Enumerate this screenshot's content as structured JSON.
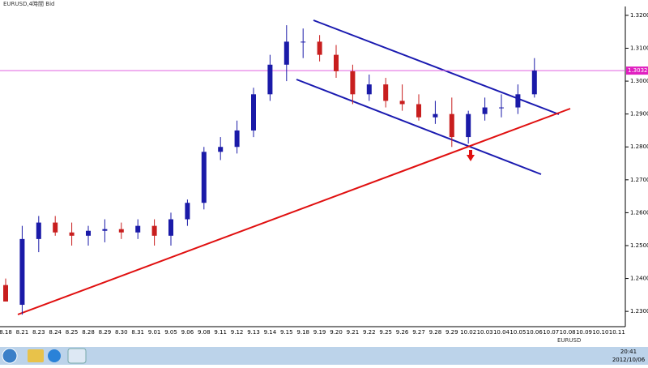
{
  "window": {
    "title": "EURUSD,4時間 Bid",
    "symbol": "EURUSD"
  },
  "chart_data": {
    "type": "candlestick",
    "categories": [
      "8.18",
      "8.21",
      "8.23",
      "8.24",
      "8.25",
      "8.28",
      "8.29",
      "8.30",
      "8.31",
      "9.01",
      "9.05",
      "9.06",
      "9.08",
      "9.11",
      "9.12",
      "9.13",
      "9.14",
      "9.15",
      "9.18",
      "9.19",
      "9.20",
      "9.21",
      "9.22",
      "9.25",
      "9.26",
      "9.27",
      "9.28",
      "9.29",
      "10.02",
      "10.03",
      "10.04",
      "10.05",
      "10.06",
      "10.07",
      "10.08",
      "10.09",
      "10.10",
      "10.11"
    ],
    "open": [
      1.238,
      1.232,
      1.252,
      1.257,
      1.254,
      1.253,
      1.2545,
      1.255,
      1.254,
      1.256,
      1.253,
      1.258,
      1.263,
      1.2785,
      1.28,
      1.285,
      1.296,
      1.305,
      1.312,
      1.312,
      1.308,
      1.303,
      1.296,
      1.299,
      1.294,
      1.293,
      1.289,
      1.29,
      1.283,
      1.29,
      1.292,
      1.292,
      1.296,
      null,
      null,
      null,
      null,
      null
    ],
    "high": [
      1.24,
      1.256,
      1.259,
      1.259,
      1.257,
      1.256,
      1.258,
      1.257,
      1.258,
      1.258,
      1.26,
      1.264,
      1.28,
      1.283,
      1.288,
      1.298,
      1.308,
      1.317,
      1.316,
      1.314,
      1.311,
      1.305,
      1.302,
      1.301,
      1.299,
      1.296,
      1.294,
      1.295,
      1.291,
      1.295,
      1.296,
      1.299,
      1.307,
      null,
      null,
      null,
      null,
      null
    ],
    "low": [
      1.233,
      1.229,
      1.248,
      1.253,
      1.25,
      1.25,
      1.251,
      1.252,
      1.252,
      1.25,
      1.25,
      1.256,
      1.261,
      1.276,
      1.278,
      1.283,
      1.294,
      1.3,
      1.307,
      1.306,
      1.301,
      1.293,
      1.294,
      1.292,
      1.291,
      1.288,
      1.287,
      1.28,
      1.281,
      1.288,
      1.289,
      1.29,
      1.295,
      null,
      null,
      null,
      null,
      null
    ],
    "close": [
      1.233,
      1.252,
      1.257,
      1.254,
      1.253,
      1.2545,
      1.255,
      1.254,
      1.256,
      1.253,
      1.258,
      1.263,
      1.2785,
      1.28,
      1.285,
      1.296,
      1.305,
      1.312,
      1.312,
      1.308,
      1.303,
      1.296,
      1.299,
      1.294,
      1.293,
      1.289,
      1.29,
      1.283,
      1.29,
      1.292,
      1.292,
      1.296,
      1.3032,
      null,
      null,
      null,
      null,
      null
    ],
    "up_color": "#1a1aa8",
    "down_color": "#c81e1e",
    "ylim": [
      1.2256,
      1.3222
    ],
    "yticks": [
      {
        "value": 1.23,
        "label": "1.2300"
      },
      {
        "value": 1.24,
        "label": "1.2400"
      },
      {
        "value": 1.25,
        "label": "1.2500"
      },
      {
        "value": 1.26,
        "label": "1.2600"
      },
      {
        "value": 1.27,
        "label": "1.2700"
      },
      {
        "value": 1.28,
        "label": "1.2800"
      },
      {
        "value": 1.29,
        "label": "1.2900"
      },
      {
        "value": 1.3,
        "label": "1.3000"
      },
      {
        "value": 1.31,
        "label": "1.3100"
      },
      {
        "value": 1.32,
        "label": "1.3200"
      }
    ],
    "current_price": {
      "value": 1.3032,
      "label": "1.3032"
    }
  },
  "taskbar": {
    "time": "20:41",
    "date": "2012/10/06"
  }
}
